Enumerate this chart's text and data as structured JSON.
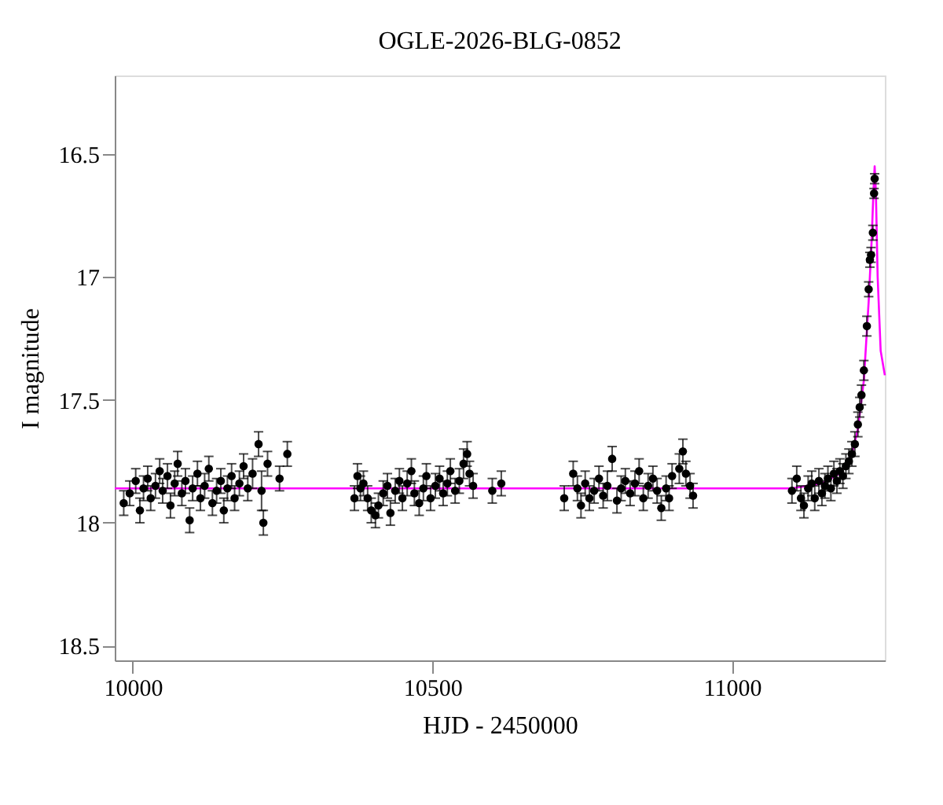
{
  "chart_data": {
    "type": "scatter",
    "title": "OGLE-2026-BLG-0852",
    "xlabel": "HJD - 2450000",
    "ylabel": "I magnitude",
    "xlim": [
      9970,
      11255
    ],
    "xticks": [
      10000,
      10500,
      11000
    ],
    "ylim": [
      18.56,
      16.18
    ],
    "yticks": [
      16.5,
      17,
      17.5,
      18,
      18.5
    ],
    "grid": false,
    "marker": "circle",
    "series": [
      {
        "type": "line",
        "color": "#ff00ff",
        "line_style": "solid",
        "marker": "none",
        "x": [
          9970,
          11100,
          11150,
          11180,
          11200,
          11210,
          11220,
          11228,
          11233,
          11236,
          11238,
          11240,
          11243,
          11248,
          11255
        ],
        "values": [
          17.86,
          17.86,
          17.84,
          17.8,
          17.72,
          17.62,
          17.42,
          17.1,
          16.85,
          16.65,
          16.55,
          16.65,
          17.0,
          17.3,
          17.4
        ]
      },
      {
        "color": "#000000",
        "x": [
          9985,
          9995,
          10005,
          10012,
          10018,
          10025,
          10030,
          10038,
          10045,
          10050,
          10058,
          10063,
          10070,
          10075,
          10082,
          10088,
          10095,
          10100,
          10108,
          10113,
          10120,
          10127,
          10133,
          10140,
          10147,
          10152,
          10158,
          10165,
          10170,
          10178,
          10185,
          10192,
          10200,
          10210,
          10215,
          10218,
          10225,
          10245,
          10258,
          10370,
          10375,
          10380,
          10385,
          10392,
          10398,
          10405,
          10410,
          10418,
          10425,
          10430,
          10438,
          10445,
          10450,
          10458,
          10465,
          10470,
          10478,
          10485,
          10490,
          10497,
          10505,
          10512,
          10518,
          10525,
          10530,
          10538,
          10545,
          10552,
          10558,
          10562,
          10568,
          10600,
          10615,
          10720,
          10735,
          10742,
          10748,
          10755,
          10762,
          10770,
          10778,
          10785,
          10792,
          10800,
          10808,
          10815,
          10822,
          10830,
          10838,
          10845,
          10852,
          10860,
          10868,
          10875,
          10882,
          10890,
          10895,
          10900,
          10912,
          10918,
          10923,
          10930,
          10935,
          11100,
          11108,
          11115,
          11120,
          11127,
          11133,
          11138,
          11145,
          11150,
          11155,
          11160,
          11165,
          11170,
          11175,
          11180,
          11185,
          11190,
          11195,
          11200,
          11205,
          11210,
          11213,
          11216,
          11220,
          11225,
          11228,
          11230,
          11232,
          11235,
          11237,
          11238
        ],
        "values": [
          17.92,
          17.88,
          17.83,
          17.95,
          17.86,
          17.82,
          17.9,
          17.85,
          17.79,
          17.87,
          17.81,
          17.93,
          17.84,
          17.76,
          17.88,
          17.83,
          17.99,
          17.86,
          17.8,
          17.9,
          17.85,
          17.78,
          17.92,
          17.87,
          17.83,
          17.95,
          17.86,
          17.81,
          17.9,
          17.84,
          17.77,
          17.86,
          17.8,
          17.68,
          17.87,
          18.0,
          17.76,
          17.82,
          17.72,
          17.9,
          17.81,
          17.86,
          17.84,
          17.9,
          17.95,
          17.97,
          17.93,
          17.88,
          17.85,
          17.96,
          17.87,
          17.83,
          17.9,
          17.84,
          17.79,
          17.88,
          17.92,
          17.86,
          17.81,
          17.9,
          17.85,
          17.82,
          17.88,
          17.84,
          17.79,
          17.87,
          17.83,
          17.76,
          17.72,
          17.8,
          17.85,
          17.87,
          17.84,
          17.9,
          17.8,
          17.86,
          17.93,
          17.84,
          17.9,
          17.87,
          17.82,
          17.89,
          17.85,
          17.74,
          17.91,
          17.86,
          17.83,
          17.88,
          17.84,
          17.79,
          17.9,
          17.85,
          17.82,
          17.87,
          17.94,
          17.86,
          17.9,
          17.81,
          17.78,
          17.71,
          17.8,
          17.85,
          17.89,
          17.87,
          17.82,
          17.9,
          17.93,
          17.86,
          17.84,
          17.9,
          17.83,
          17.88,
          17.85,
          17.82,
          17.86,
          17.8,
          17.83,
          17.79,
          17.81,
          17.77,
          17.75,
          17.72,
          17.68,
          17.6,
          17.53,
          17.48,
          17.38,
          17.2,
          17.05,
          16.93,
          16.91,
          16.82,
          16.66,
          16.6
        ],
        "errors": [
          0.05,
          0.05,
          0.05,
          0.05,
          0.05,
          0.05,
          0.05,
          0.05,
          0.05,
          0.05,
          0.05,
          0.05,
          0.05,
          0.05,
          0.05,
          0.05,
          0.05,
          0.05,
          0.05,
          0.05,
          0.05,
          0.05,
          0.05,
          0.05,
          0.05,
          0.05,
          0.05,
          0.05,
          0.05,
          0.05,
          0.05,
          0.05,
          0.06,
          0.05,
          0.08,
          0.05,
          0.05,
          0.05,
          0.05,
          0.05,
          0.05,
          0.05,
          0.05,
          0.05,
          0.05,
          0.05,
          0.05,
          0.05,
          0.05,
          0.05,
          0.05,
          0.05,
          0.05,
          0.05,
          0.05,
          0.05,
          0.05,
          0.05,
          0.05,
          0.05,
          0.05,
          0.05,
          0.05,
          0.05,
          0.05,
          0.05,
          0.05,
          0.06,
          0.05,
          0.05,
          0.05,
          0.05,
          0.05,
          0.05,
          0.05,
          0.05,
          0.05,
          0.05,
          0.05,
          0.05,
          0.05,
          0.05,
          0.06,
          0.05,
          0.05,
          0.05,
          0.05,
          0.05,
          0.05,
          0.05,
          0.05,
          0.05,
          0.05,
          0.05,
          0.05,
          0.05,
          0.05,
          0.05,
          0.06,
          0.05,
          0.05,
          0.05,
          0.05,
          0.05,
          0.05,
          0.05,
          0.05,
          0.05,
          0.05,
          0.05,
          0.05,
          0.05,
          0.05,
          0.05,
          0.05,
          0.05,
          0.05,
          0.05,
          0.05,
          0.05,
          0.05,
          0.05,
          0.05,
          0.05,
          0.04,
          0.04,
          0.04,
          0.04,
          0.03,
          0.03,
          0.03,
          0.03,
          0.02,
          0.02
        ]
      }
    ]
  }
}
